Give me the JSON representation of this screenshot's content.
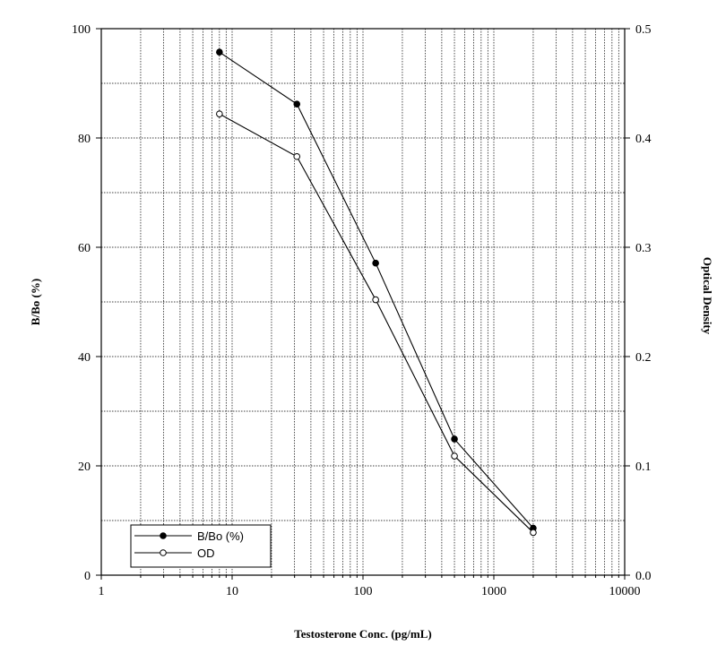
{
  "chart_data": {
    "type": "line",
    "xlabel": "Testosterone Conc. (pg/mL)",
    "ylabel": "B/Bo (%)",
    "y2label": "Optical Density",
    "xscale": "log",
    "xlim": [
      1,
      10000
    ],
    "ylim": [
      0,
      100
    ],
    "y2lim": [
      0,
      0.5
    ],
    "x_ticks": [
      "1",
      "10",
      "100",
      "1000",
      "10000"
    ],
    "y_ticks": [
      "0",
      "20",
      "40",
      "60",
      "80",
      "100"
    ],
    "y2_ticks": [
      "0.0",
      "0.1",
      "0.2",
      "0.3",
      "0.4",
      "0.5"
    ],
    "grid": true,
    "legend_position": "bottom-left",
    "series": [
      {
        "name": "B/Bo (%)",
        "axis": "left",
        "marker": "filled-circle",
        "x": [
          8,
          31.25,
          125,
          500,
          2000
        ],
        "y": [
          95.7,
          86.2,
          57.1,
          24.9,
          8.6
        ]
      },
      {
        "name": "OD",
        "axis": "right",
        "marker": "open-circle",
        "x": [
          8,
          31.25,
          125,
          500,
          2000
        ],
        "y": [
          0.422,
          0.383,
          0.252,
          0.109,
          0.039
        ]
      }
    ]
  }
}
